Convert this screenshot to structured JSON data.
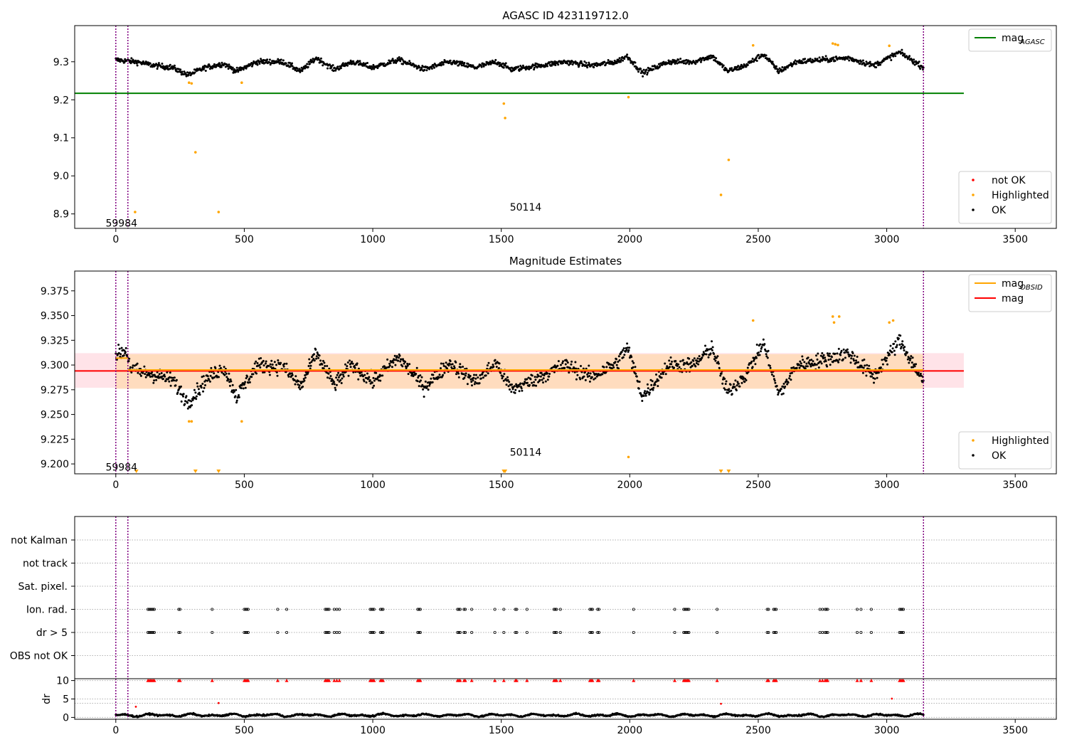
{
  "chart_data": [
    {
      "type": "scatter",
      "title": "AGASC ID 423119712.0",
      "xlim": [
        -160,
        3660
      ],
      "ylim": [
        8.862,
        9.395
      ],
      "xticks": [
        0,
        500,
        1000,
        1500,
        2000,
        2500,
        3000,
        3500
      ],
      "yticks": [
        8.9,
        9.0,
        9.1,
        9.2,
        9.3
      ],
      "ytick_labels": [
        "8.9",
        "9.0",
        "9.1",
        "9.2",
        "9.3"
      ],
      "vlines": [
        0,
        47,
        3143
      ],
      "obsid_labels": [
        {
          "text": "59984",
          "x": 22,
          "y": 8.876
        },
        {
          "text": "50114",
          "x": 1595,
          "y": 8.918
        }
      ],
      "hline": {
        "name": "mag_AGASC",
        "y": 9.217,
        "xmin": -160,
        "xmax": 3300,
        "color": "#008000"
      },
      "ok_series": {
        "name": "OK",
        "color": "#000000",
        "segments": [
          [
            0,
            9.305
          ],
          [
            80,
            9.3
          ],
          [
            150,
            9.29
          ],
          [
            220,
            9.285
          ],
          [
            280,
            9.265
          ],
          [
            350,
            9.285
          ],
          [
            420,
            9.295
          ],
          [
            470,
            9.275
          ],
          [
            550,
            9.3
          ],
          [
            650,
            9.3
          ],
          [
            720,
            9.275
          ],
          [
            780,
            9.31
          ],
          [
            850,
            9.28
          ],
          [
            920,
            9.3
          ],
          [
            1000,
            9.285
          ],
          [
            1100,
            9.305
          ],
          [
            1200,
            9.28
          ],
          [
            1300,
            9.3
          ],
          [
            1400,
            9.285
          ],
          [
            1480,
            9.3
          ],
          [
            1540,
            9.28
          ],
          [
            1650,
            9.29
          ],
          [
            1750,
            9.3
          ],
          [
            1850,
            9.29
          ],
          [
            1950,
            9.3
          ],
          [
            1990,
            9.315
          ],
          [
            2050,
            9.27
          ],
          [
            2150,
            9.3
          ],
          [
            2250,
            9.3
          ],
          [
            2320,
            9.315
          ],
          [
            2380,
            9.275
          ],
          [
            2450,
            9.29
          ],
          [
            2520,
            9.32
          ],
          [
            2580,
            9.275
          ],
          [
            2650,
            9.3
          ],
          [
            2750,
            9.305
          ],
          [
            2850,
            9.31
          ],
          [
            2950,
            9.29
          ],
          [
            3050,
            9.325
          ],
          [
            3143,
            9.285
          ]
        ],
        "noise": 0.012
      },
      "highlighted_points": [
        [
          75,
          8.905
        ],
        [
          285,
          9.245
        ],
        [
          295,
          9.243
        ],
        [
          310,
          9.062
        ],
        [
          400,
          8.905
        ],
        [
          490,
          9.245
        ],
        [
          1510,
          9.19
        ],
        [
          1515,
          9.152
        ],
        [
          1995,
          9.207
        ],
        [
          2355,
          8.95
        ],
        [
          2385,
          9.042
        ],
        [
          2480,
          9.343
        ],
        [
          2790,
          9.348
        ],
        [
          2800,
          9.346
        ],
        [
          2810,
          9.344
        ],
        [
          3010,
          9.342
        ]
      ],
      "not_ok_points": [],
      "legends": [
        {
          "position": "top-right",
          "entries": [
            {
              "label": "mag",
              "sub": "AGASC",
              "color": "#008000",
              "marker": "line"
            }
          ]
        },
        {
          "position": "bottom-right",
          "entries": [
            {
              "label": "not OK",
              "color": "#ff0000",
              "marker": "dot"
            },
            {
              "label": "Highlighted",
              "color": "#ffa500",
              "marker": "dot"
            },
            {
              "label": "OK",
              "color": "#000000",
              "marker": "dot"
            }
          ]
        }
      ]
    },
    {
      "type": "scatter",
      "title": "Magnitude Estimates",
      "xlim": [
        -160,
        3660
      ],
      "ylim": [
        9.19,
        9.395
      ],
      "xticks": [
        0,
        500,
        1000,
        1500,
        2000,
        2500,
        3000,
        3500
      ],
      "yticks": [
        9.2,
        9.225,
        9.25,
        9.275,
        9.3,
        9.325,
        9.35,
        9.375
      ],
      "ytick_labels": [
        "9.200",
        "9.225",
        "9.250",
        "9.275",
        "9.300",
        "9.325",
        "9.350",
        "9.375"
      ],
      "vlines": [
        0,
        47,
        3143
      ],
      "obsid_labels": [
        {
          "text": "59984",
          "x": 22,
          "y": 9.197
        },
        {
          "text": "50114",
          "x": 1595,
          "y": 9.212
        }
      ],
      "mag_line": {
        "name": "mag",
        "y": 9.294,
        "xmin": -160,
        "xmax": 3300,
        "band": [
          9.277,
          9.312
        ],
        "color": "#ff0000",
        "band_color": "#ffc0cb"
      },
      "obsid_mag": {
        "name": "mag_OBSID",
        "color": "#ffa500",
        "segments": [
          {
            "x0": 0,
            "x1": 47,
            "y": 9.307
          },
          {
            "x0": 47,
            "x1": 3143,
            "y": 9.295
          }
        ],
        "band": [
          9.276,
          9.311
        ],
        "band_color": "#ffdab9"
      },
      "ok_series": {
        "name": "OK",
        "color": "#000000",
        "segments": [
          [
            0,
            9.31
          ],
          [
            40,
            9.315
          ],
          [
            60,
            9.295
          ],
          [
            150,
            9.29
          ],
          [
            220,
            9.285
          ],
          [
            280,
            9.262
          ],
          [
            350,
            9.285
          ],
          [
            420,
            9.298
          ],
          [
            470,
            9.268
          ],
          [
            550,
            9.3
          ],
          [
            650,
            9.298
          ],
          [
            720,
            9.278
          ],
          [
            780,
            9.312
          ],
          [
            850,
            9.28
          ],
          [
            920,
            9.3
          ],
          [
            1000,
            9.283
          ],
          [
            1100,
            9.308
          ],
          [
            1200,
            9.278
          ],
          [
            1300,
            9.302
          ],
          [
            1400,
            9.283
          ],
          [
            1480,
            9.302
          ],
          [
            1540,
            9.275
          ],
          [
            1650,
            9.288
          ],
          [
            1750,
            9.3
          ],
          [
            1850,
            9.288
          ],
          [
            1950,
            9.302
          ],
          [
            1990,
            9.318
          ],
          [
            2050,
            9.268
          ],
          [
            2150,
            9.3
          ],
          [
            2250,
            9.3
          ],
          [
            2320,
            9.318
          ],
          [
            2380,
            9.272
          ],
          [
            2450,
            9.29
          ],
          [
            2520,
            9.322
          ],
          [
            2580,
            9.27
          ],
          [
            2650,
            9.3
          ],
          [
            2750,
            9.305
          ],
          [
            2850,
            9.312
          ],
          [
            2950,
            9.288
          ],
          [
            3050,
            9.325
          ],
          [
            3143,
            9.283
          ]
        ],
        "noise": 0.013
      },
      "highlighted_points": [
        [
          285,
          9.243
        ],
        [
          295,
          9.243
        ],
        [
          490,
          9.243
        ],
        [
          1995,
          9.207
        ],
        [
          2480,
          9.345
        ],
        [
          2790,
          9.349
        ],
        [
          2795,
          9.343
        ],
        [
          2815,
          9.349
        ],
        [
          3010,
          9.343
        ],
        [
          3025,
          9.345
        ]
      ],
      "clipped_markers": [
        80,
        310,
        400,
        1510,
        1515,
        2355,
        2385
      ],
      "legends": [
        {
          "position": "top-right",
          "entries": [
            {
              "label": "mag",
              "sub": "OBSID",
              "color": "#ffa500",
              "marker": "line"
            },
            {
              "label": "mag",
              "color": "#ff0000",
              "marker": "line"
            }
          ]
        },
        {
          "position": "bottom-right",
          "entries": [
            {
              "label": "Highlighted",
              "color": "#ffa500",
              "marker": "dot"
            },
            {
              "label": "OK",
              "color": "#000000",
              "marker": "dot"
            }
          ]
        }
      ]
    },
    {
      "type": "scatter",
      "xlim": [
        -160,
        3660
      ],
      "categories": [
        "not Kalman",
        "not track",
        "Sat. pixel.",
        "Ion. rad.",
        "dr > 5",
        "OBS not OK"
      ],
      "vlines": [
        0,
        47,
        3143
      ],
      "flag_times": [
        125,
        130,
        135,
        140,
        145,
        150,
        245,
        250,
        375,
        500,
        505,
        510,
        515,
        630,
        665,
        815,
        820,
        825,
        830,
        850,
        860,
        870,
        990,
        995,
        1000,
        1005,
        1030,
        1035,
        1040,
        1175,
        1180,
        1185,
        1330,
        1335,
        1340,
        1355,
        1360,
        1385,
        1475,
        1510,
        1555,
        1560,
        1600,
        1705,
        1710,
        1715,
        1730,
        1845,
        1850,
        1855,
        1875,
        1880,
        2015,
        2175,
        2210,
        2215,
        2220,
        2225,
        2230,
        2340,
        2535,
        2540,
        2560,
        2565,
        2570,
        2740,
        2750,
        2760,
        2765,
        2770,
        2885,
        2900,
        2940,
        3050,
        3055,
        3060,
        3065
      ],
      "flagged_rows": [
        "Ion. rad.",
        "dr > 5"
      ],
      "xticks": [
        0,
        500,
        1000,
        1500,
        2000,
        2500,
        3000,
        3500
      ]
    },
    {
      "type": "scatter",
      "ylabel": "dr",
      "xlim": [
        -160,
        3660
      ],
      "ylim": [
        -0.5,
        10.5
      ],
      "yticks": [
        0,
        5,
        10
      ],
      "xticks": [
        0,
        500,
        1000,
        1500,
        2000,
        2500,
        3000,
        3500
      ],
      "vlines": [
        0,
        47,
        3143
      ],
      "dr_baseline": 0.6,
      "red_outliers": [
        [
          78,
          2.9
        ],
        [
          400,
          3.9
        ],
        [
          2355,
          3.7
        ],
        [
          3020,
          5.1
        ]
      ],
      "clipped_at_10": [
        125,
        130,
        135,
        140,
        145,
        150,
        245,
        250,
        375,
        500,
        505,
        510,
        515,
        630,
        665,
        815,
        820,
        825,
        830,
        850,
        860,
        870,
        990,
        995,
        1000,
        1005,
        1030,
        1035,
        1040,
        1175,
        1180,
        1185,
        1330,
        1335,
        1340,
        1355,
        1360,
        1385,
        1475,
        1510,
        1555,
        1560,
        1600,
        1705,
        1710,
        1715,
        1730,
        1845,
        1850,
        1855,
        1875,
        1880,
        2015,
        2175,
        2210,
        2215,
        2220,
        2225,
        2230,
        2340,
        2535,
        2540,
        2560,
        2565,
        2570,
        2740,
        2750,
        2760,
        2765,
        2770,
        2885,
        2900,
        2940,
        3050,
        3055,
        3060,
        3065
      ]
    }
  ]
}
